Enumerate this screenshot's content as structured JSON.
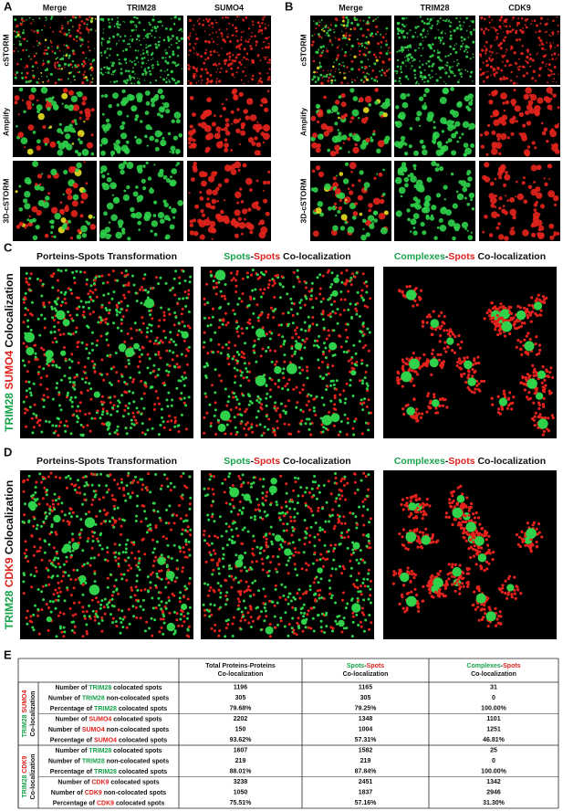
{
  "panel_a": {
    "letter": "A",
    "columns": [
      {
        "text": "Merge",
        "color": "#f2a31b"
      },
      {
        "text": "TRIM28",
        "color": "#17a34a"
      },
      {
        "text": "SUMO4",
        "color": "#e0201b"
      }
    ],
    "rows": [
      "cSTORM",
      "Amplify",
      "3D-cSTORM"
    ]
  },
  "panel_b": {
    "letter": "B",
    "columns": [
      {
        "text": "Merge",
        "color": "#f2a31b"
      },
      {
        "text": "TRIM28",
        "color": "#17a34a"
      },
      {
        "text": "CDK9",
        "color": "#e0201b"
      }
    ],
    "rows": [
      "cSTORM",
      "Amplify",
      "3D-cSTORM"
    ]
  },
  "panel_c": {
    "letter": "C",
    "side_label": [
      {
        "text": "TRIM28",
        "color": "#17a34a"
      },
      {
        "text": " SUMO4",
        "color": "#e0201b"
      },
      {
        "text": " Colocalization"
      }
    ],
    "titles": [
      [
        {
          "text": "Porteins-Spots Transformation"
        }
      ],
      [
        {
          "text": "Spots",
          "color": "#17a34a"
        },
        {
          "text": "-"
        },
        {
          "text": "Spots",
          "color": "#e0201b"
        },
        {
          "text": " Co-localization"
        }
      ],
      [
        {
          "text": "Complexes",
          "color": "#17a34a"
        },
        {
          "text": "-"
        },
        {
          "text": "Spots",
          "color": "#e0201b"
        },
        {
          "text": " Co-localization"
        }
      ]
    ]
  },
  "panel_d": {
    "letter": "D",
    "side_label": [
      {
        "text": "TRIM28",
        "color": "#17a34a"
      },
      {
        "text": " CDK9",
        "color": "#e0201b"
      },
      {
        "text": " Colocalization"
      }
    ],
    "titles": [
      [
        {
          "text": "Porteins-Spots Transformation"
        }
      ],
      [
        {
          "text": "Spots",
          "color": "#17a34a"
        },
        {
          "text": "-"
        },
        {
          "text": "Spots",
          "color": "#e0201b"
        },
        {
          "text": " Co-localization"
        }
      ],
      [
        {
          "text": "Complexes",
          "color": "#17a34a"
        },
        {
          "text": "-"
        },
        {
          "text": "Spots",
          "color": "#e0201b"
        },
        {
          "text": " Co-localization"
        }
      ]
    ]
  },
  "panel_e": {
    "letter": "E",
    "header": [
      [
        [
          {
            "text": "Total Proteins-Proteins"
          }
        ],
        [
          {
            "text": "Co-localization"
          }
        ]
      ],
      [
        [
          {
            "text": "Spots",
            "color": "#17a34a"
          },
          {
            "text": "-"
          },
          {
            "text": "Spots",
            "color": "#e0201b"
          }
        ],
        [
          {
            "text": "Co-localization"
          }
        ]
      ],
      [
        [
          {
            "text": "Complexes",
            "color": "#17a34a"
          },
          {
            "text": "-"
          },
          {
            "text": "Spots",
            "color": "#e0201b"
          }
        ],
        [
          {
            "text": "Co-localization"
          }
        ]
      ]
    ],
    "groups": [
      {
        "label": [
          [
            {
              "text": "TRIM28",
              "color": "#17a34a"
            },
            {
              "text": " SUMO4",
              "color": "#e0201b"
            }
          ],
          [
            {
              "text": "Co-localization"
            }
          ]
        ],
        "rows": [
          {
            "label": [
              {
                "text": "Number of "
              },
              {
                "text": "TRIM28",
                "color": "#17a34a"
              },
              {
                "text": " colocated spots"
              }
            ],
            "cells": [
              "1196",
              "1165",
              "31"
            ]
          },
          {
            "label": [
              {
                "text": "Number of "
              },
              {
                "text": "TRIM28",
                "color": "#17a34a"
              },
              {
                "text": " non-colocated spots"
              }
            ],
            "cells": [
              "305",
              "305",
              "0"
            ]
          },
          {
            "label": [
              {
                "text": "Percentage of "
              },
              {
                "text": "TRIM28",
                "color": "#17a34a"
              },
              {
                "text": " colocated spots"
              }
            ],
            "cells": [
              "79.68%",
              "79.25%",
              "100.00%"
            ]
          },
          {
            "label": [
              {
                "text": "Number of "
              },
              {
                "text": "SUMO4",
                "color": "#e0201b"
              },
              {
                "text": " colocated spots"
              }
            ],
            "cells": [
              "2202",
              "1348",
              "1101"
            ]
          },
          {
            "label": [
              {
                "text": "Number of "
              },
              {
                "text": "SUMO4",
                "color": "#e0201b"
              },
              {
                "text": " non-colocated spots"
              }
            ],
            "cells": [
              "150",
              "1004",
              "1251"
            ]
          },
          {
            "label": [
              {
                "text": "Percentage of "
              },
              {
                "text": "SUMO4",
                "color": "#e0201b"
              },
              {
                "text": " colocated spots"
              }
            ],
            "cells": [
              "93.62%",
              "57.31%",
              "46.81%"
            ]
          }
        ]
      },
      {
        "label": [
          [
            {
              "text": "TRIM28",
              "color": "#17a34a"
            },
            {
              "text": " CDK9",
              "color": "#e0201b"
            }
          ],
          [
            {
              "text": "Co-localization"
            }
          ]
        ],
        "rows": [
          {
            "label": [
              {
                "text": "Number of "
              },
              {
                "text": "TRIM28",
                "color": "#17a34a"
              },
              {
                "text": " colocated spots"
              }
            ],
            "cells": [
              "1607",
              "1582",
              "25"
            ]
          },
          {
            "label": [
              {
                "text": "Number of "
              },
              {
                "text": "TRIM28",
                "color": "#17a34a"
              },
              {
                "text": " non-colocated spots"
              }
            ],
            "cells": [
              "219",
              "219",
              "0"
            ]
          },
          {
            "label": [
              {
                "text": "Percentage of "
              },
              {
                "text": "TRIM28",
                "color": "#17a34a"
              },
              {
                "text": " colocated spots"
              }
            ],
            "cells": [
              "88.01%",
              "87.84%",
              "100.00%"
            ]
          },
          {
            "label": [
              {
                "text": "Number of "
              },
              {
                "text": "CDK9",
                "color": "#e0201b"
              },
              {
                "text": " colocated spots"
              }
            ],
            "cells": [
              "3238",
              "2451",
              "1342"
            ]
          },
          {
            "label": [
              {
                "text": "Number of "
              },
              {
                "text": "CDK9",
                "color": "#e0201b"
              },
              {
                "text": " non-colocated spots"
              }
            ],
            "cells": [
              "1050",
              "1837",
              "2946"
            ]
          },
          {
            "label": [
              {
                "text": "Percentage of "
              },
              {
                "text": "CDK9",
                "color": "#e0201b"
              },
              {
                "text": " colocated spots"
              }
            ],
            "cells": [
              "75.51%",
              "57.16%",
              "31.30%"
            ]
          }
        ]
      }
    ]
  }
}
